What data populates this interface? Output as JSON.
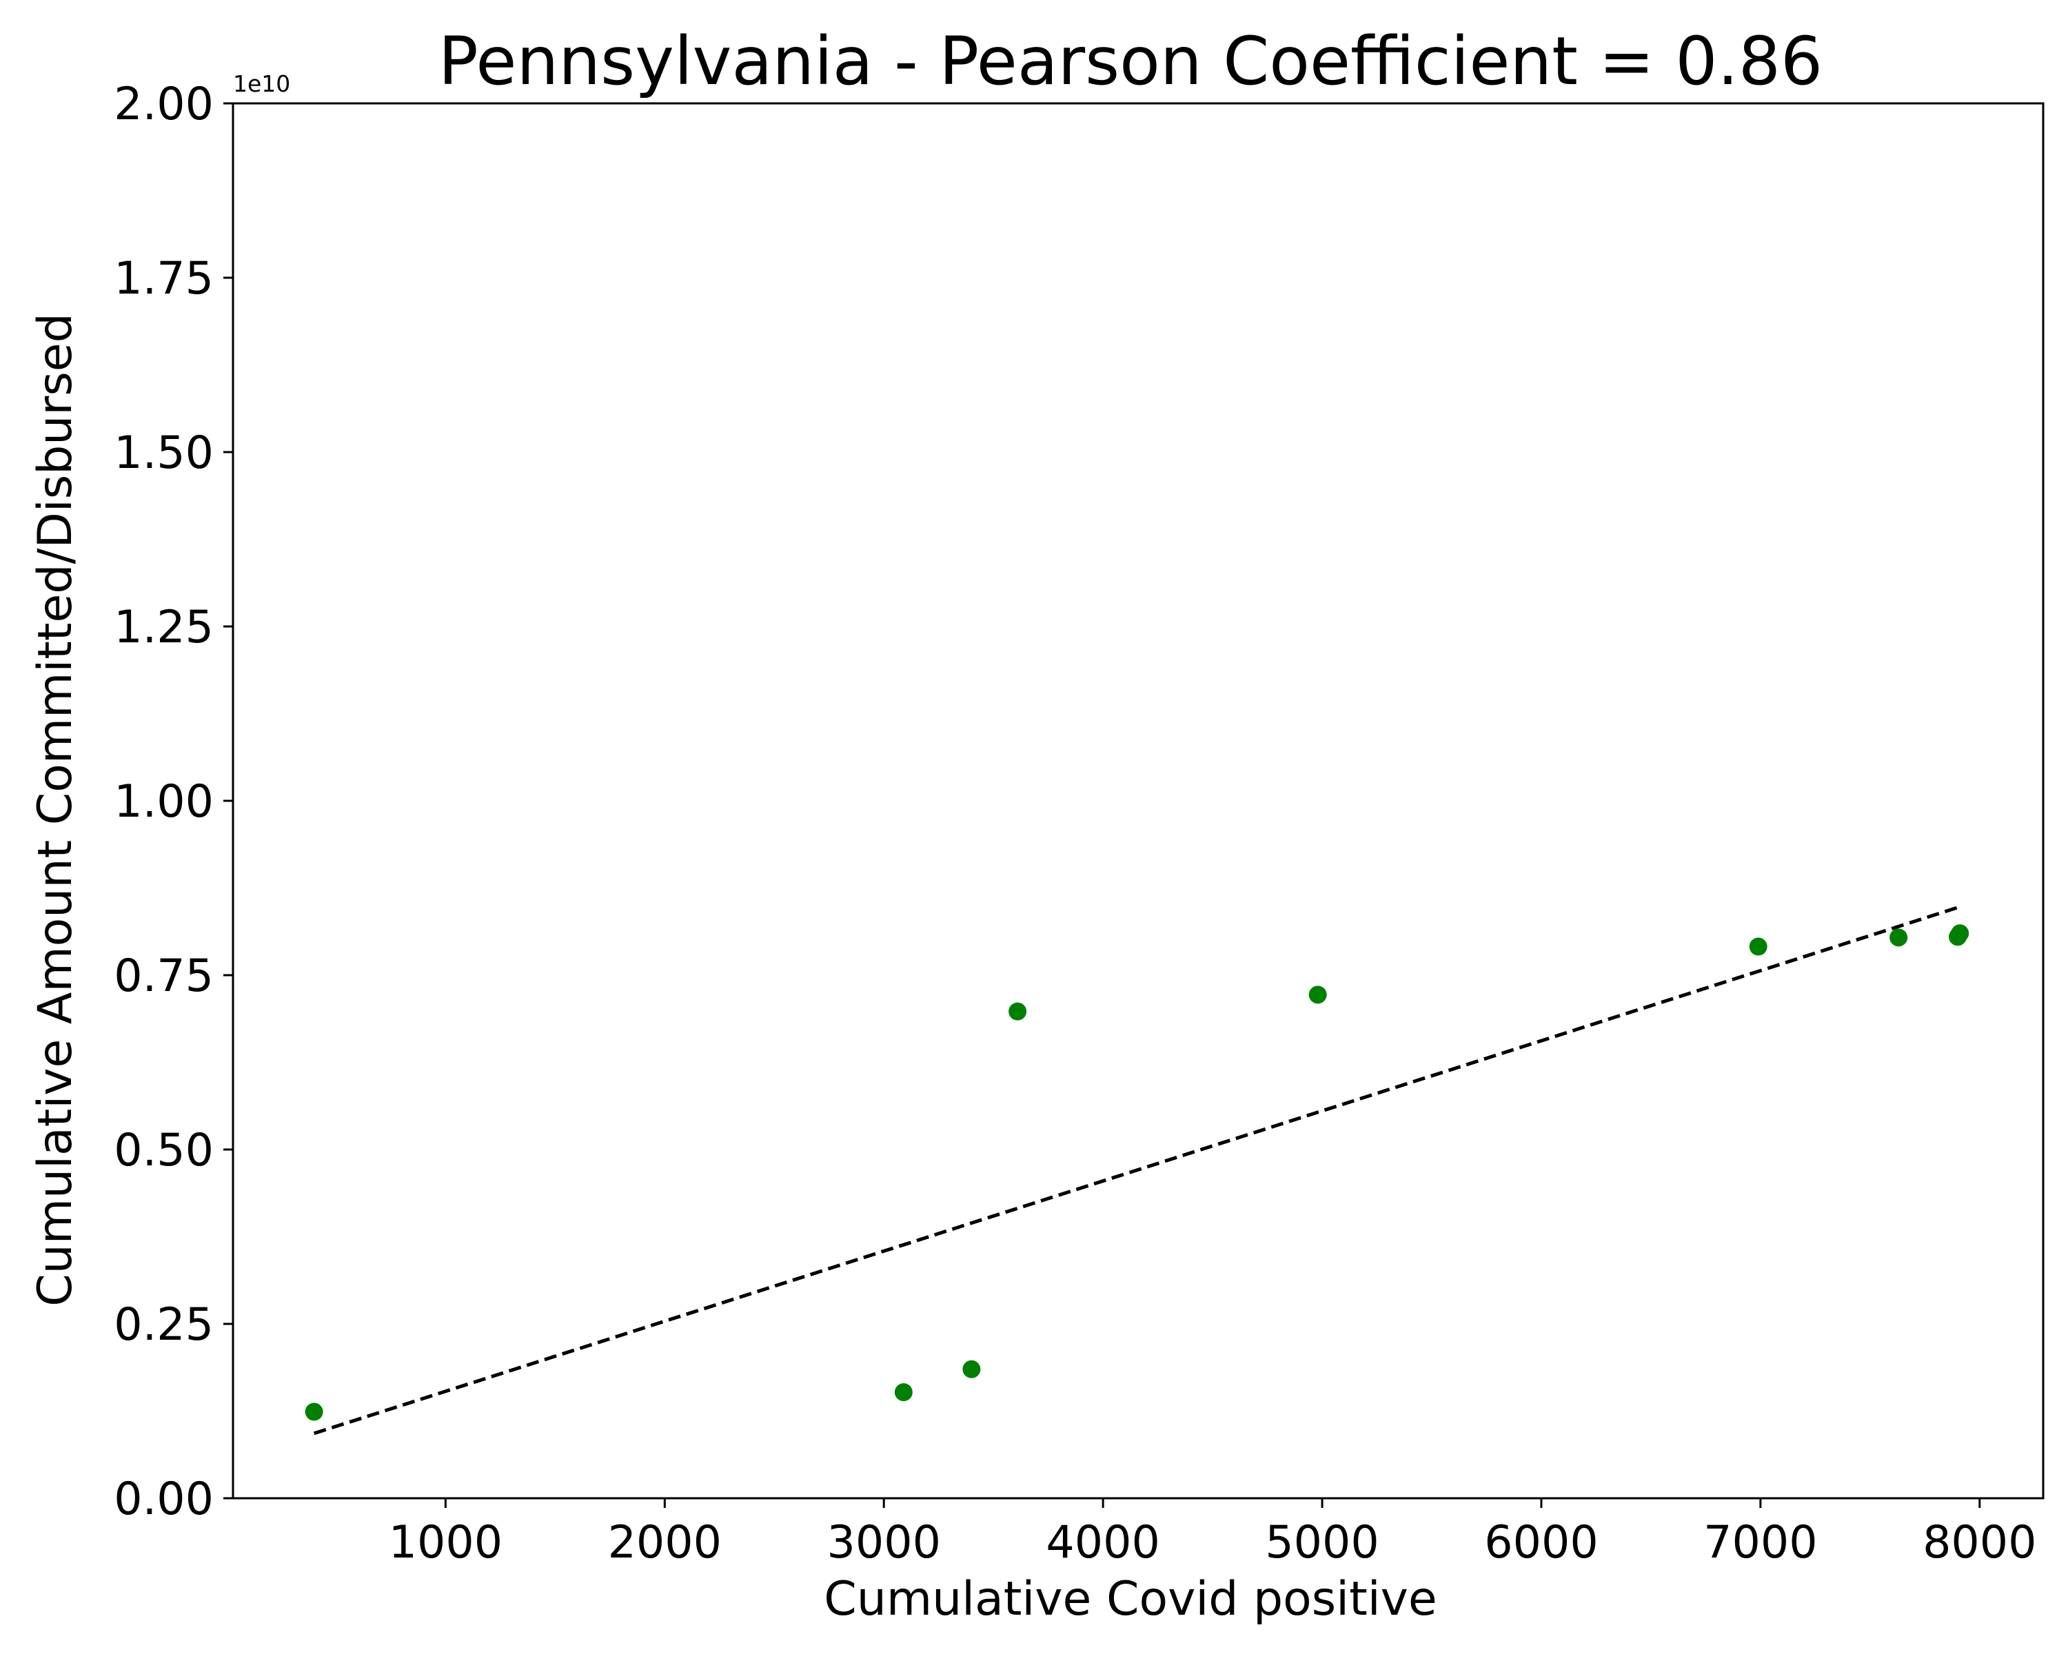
{
  "colors": {
    "point": "#008000",
    "trend": "#000000",
    "axis": "#000000",
    "background": "#ffffff"
  },
  "chart_data": {
    "type": "scatter",
    "title": "Pennsylvania - Pearson Coefficient = 0.86",
    "xlabel": "Cumulative Covid positive",
    "ylabel": "Cumulative Amount Committed/Disbursed",
    "y_offset_label": "1e10",
    "xlim": [
      30,
      8290
    ],
    "ylim": [
      0,
      2.0
    ],
    "y_scale_factor": 10000000000,
    "x_ticks": [
      1000,
      2000,
      3000,
      4000,
      5000,
      6000,
      7000,
      8000
    ],
    "x_tick_labels": [
      "1000",
      "2000",
      "3000",
      "4000",
      "5000",
      "6000",
      "7000",
      "8000"
    ],
    "y_ticks": [
      0.0,
      0.25,
      0.5,
      0.75,
      1.0,
      1.25,
      1.5,
      1.75,
      2.0
    ],
    "y_tick_labels": [
      "0.00",
      "0.25",
      "0.50",
      "0.75",
      "1.00",
      "1.25",
      "1.50",
      "1.75",
      "2.00"
    ],
    "grid": false,
    "legend": "none",
    "points": [
      {
        "x": 400,
        "y": 0.124
      },
      {
        "x": 3090,
        "y": 0.152
      },
      {
        "x": 3400,
        "y": 0.185
      },
      {
        "x": 3610,
        "y": 0.698
      },
      {
        "x": 4980,
        "y": 0.722
      },
      {
        "x": 6990,
        "y": 0.791
      },
      {
        "x": 7630,
        "y": 0.804
      },
      {
        "x": 7900,
        "y": 0.805
      },
      {
        "x": 7910,
        "y": 0.81
      }
    ],
    "trend_line": {
      "style": "dashed",
      "x": [
        400,
        7910
      ],
      "y": [
        0.093,
        0.848
      ]
    }
  }
}
